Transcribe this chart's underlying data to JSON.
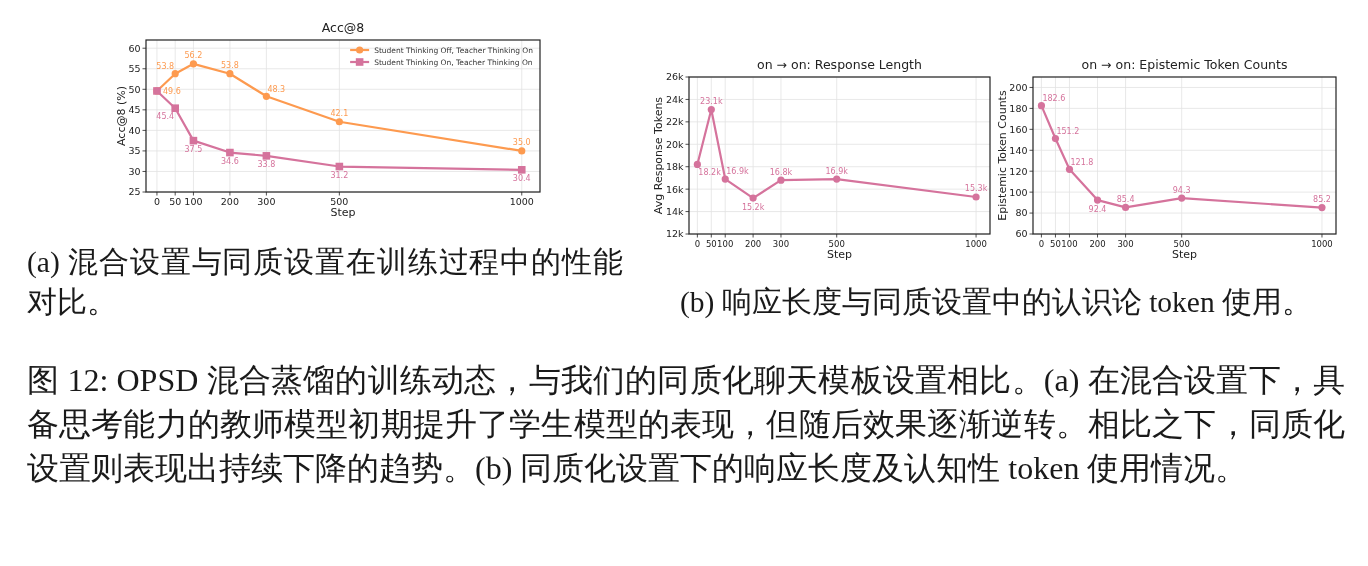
{
  "chart_data": [
    {
      "type": "line",
      "title": "Acc@8",
      "xlabel": "Step",
      "ylabel": "Acc@8 (%)",
      "x": [
        0,
        50,
        100,
        200,
        300,
        500,
        1000
      ],
      "xlim": [
        -30,
        1050
      ],
      "xticks": [
        0,
        50,
        100,
        200,
        300,
        500,
        1000
      ],
      "ylim": [
        25,
        62
      ],
      "yticks": [
        25,
        30,
        35,
        40,
        45,
        50,
        55,
        60
      ],
      "grid": true,
      "legend": "top right",
      "series": [
        {
          "name": "Student Thinking Off, Teacher Thinking On",
          "color": "#fd9a4f",
          "marker": "circle",
          "values": [
            49.6,
            53.8,
            56.2,
            53.8,
            48.3,
            42.1,
            35.0
          ],
          "value_labels": [
            "49.6",
            "53.8",
            "56.2",
            "53.8",
            "48.3",
            "42.1",
            "35.0"
          ]
        },
        {
          "name": "Student Thinking On, Teacher Thinking On",
          "color": "#d5739c",
          "marker": "square",
          "values": [
            49.6,
            45.4,
            37.5,
            34.6,
            33.8,
            31.2,
            30.4
          ],
          "value_labels": [
            null,
            "45.4",
            "37.5",
            "34.6",
            "33.8",
            "31.2",
            "30.4"
          ]
        }
      ],
      "annotations": [
        "(a) 混合设置与同质设置在训练过程中的性能对比。"
      ]
    },
    {
      "type": "line",
      "title": "on → on: Response Length",
      "xlabel": "Step",
      "ylabel": "Avg Response Tokens",
      "x": [
        0,
        50,
        100,
        200,
        300,
        500,
        1000
      ],
      "xlim": [
        -30,
        1050
      ],
      "xticks": [
        0,
        50,
        100,
        200,
        300,
        500,
        1000
      ],
      "ylim": [
        12000,
        26000
      ],
      "yticks": [
        {
          "value": 12000,
          "label": "12k"
        },
        {
          "value": 14000,
          "label": "14k"
        },
        {
          "value": 16000,
          "label": "16k"
        },
        {
          "value": 18000,
          "label": "18k"
        },
        {
          "value": 20000,
          "label": "20k"
        },
        {
          "value": 22000,
          "label": "22k"
        },
        {
          "value": 24000,
          "label": "24k"
        },
        {
          "value": 26000,
          "label": "26k"
        }
      ],
      "grid": true,
      "marker": "circle",
      "series": [
        {
          "color": "#d5739c",
          "values": [
            18200,
            23100,
            16900,
            15200,
            16800,
            16900,
            15300
          ],
          "value_labels": [
            "18.2k",
            "23.1k",
            "16.9k",
            "15.2k",
            "16.8k",
            "16.9k",
            "15.3k"
          ]
        }
      ],
      "annotations": [
        "(b) 响应长度与同质设置中的认识论 token 使用。"
      ]
    },
    {
      "type": "line",
      "title": "on → on: Epistemic Token Counts",
      "xlabel": "Step",
      "ylabel": "Epistemic Token Counts",
      "x": [
        0,
        50,
        100,
        200,
        300,
        500,
        1000
      ],
      "xlim": [
        -30,
        1050
      ],
      "xticks": [
        0,
        50,
        100,
        200,
        300,
        500,
        1000
      ],
      "ylim": [
        60,
        210
      ],
      "yticks": [
        60,
        80,
        100,
        120,
        140,
        160,
        180,
        200
      ],
      "grid": true,
      "marker": "circle",
      "series": [
        {
          "color": "#d5739c",
          "values": [
            182.6,
            151.2,
            121.8,
            92.4,
            85.4,
            94.3,
            85.2
          ],
          "value_labels": [
            "182.6",
            "151.2",
            "121.8",
            "92.4",
            "85.4",
            "94.3",
            "85.2"
          ]
        }
      ],
      "annotations": [
        "图 12: OPSD 混合蒸馏的训练动态，与我们的同质化聊天模板设置相比。(a) 在混合设置下，具备思考能力的教师模型初期提升了学生模型的表现，但随后效果逐渐逆转。相比之下，同质化设置则表现出持续下降的趋势。(b) 同质化设置下的响应长度及认知性 token 使用情况。"
      ]
    }
  ]
}
